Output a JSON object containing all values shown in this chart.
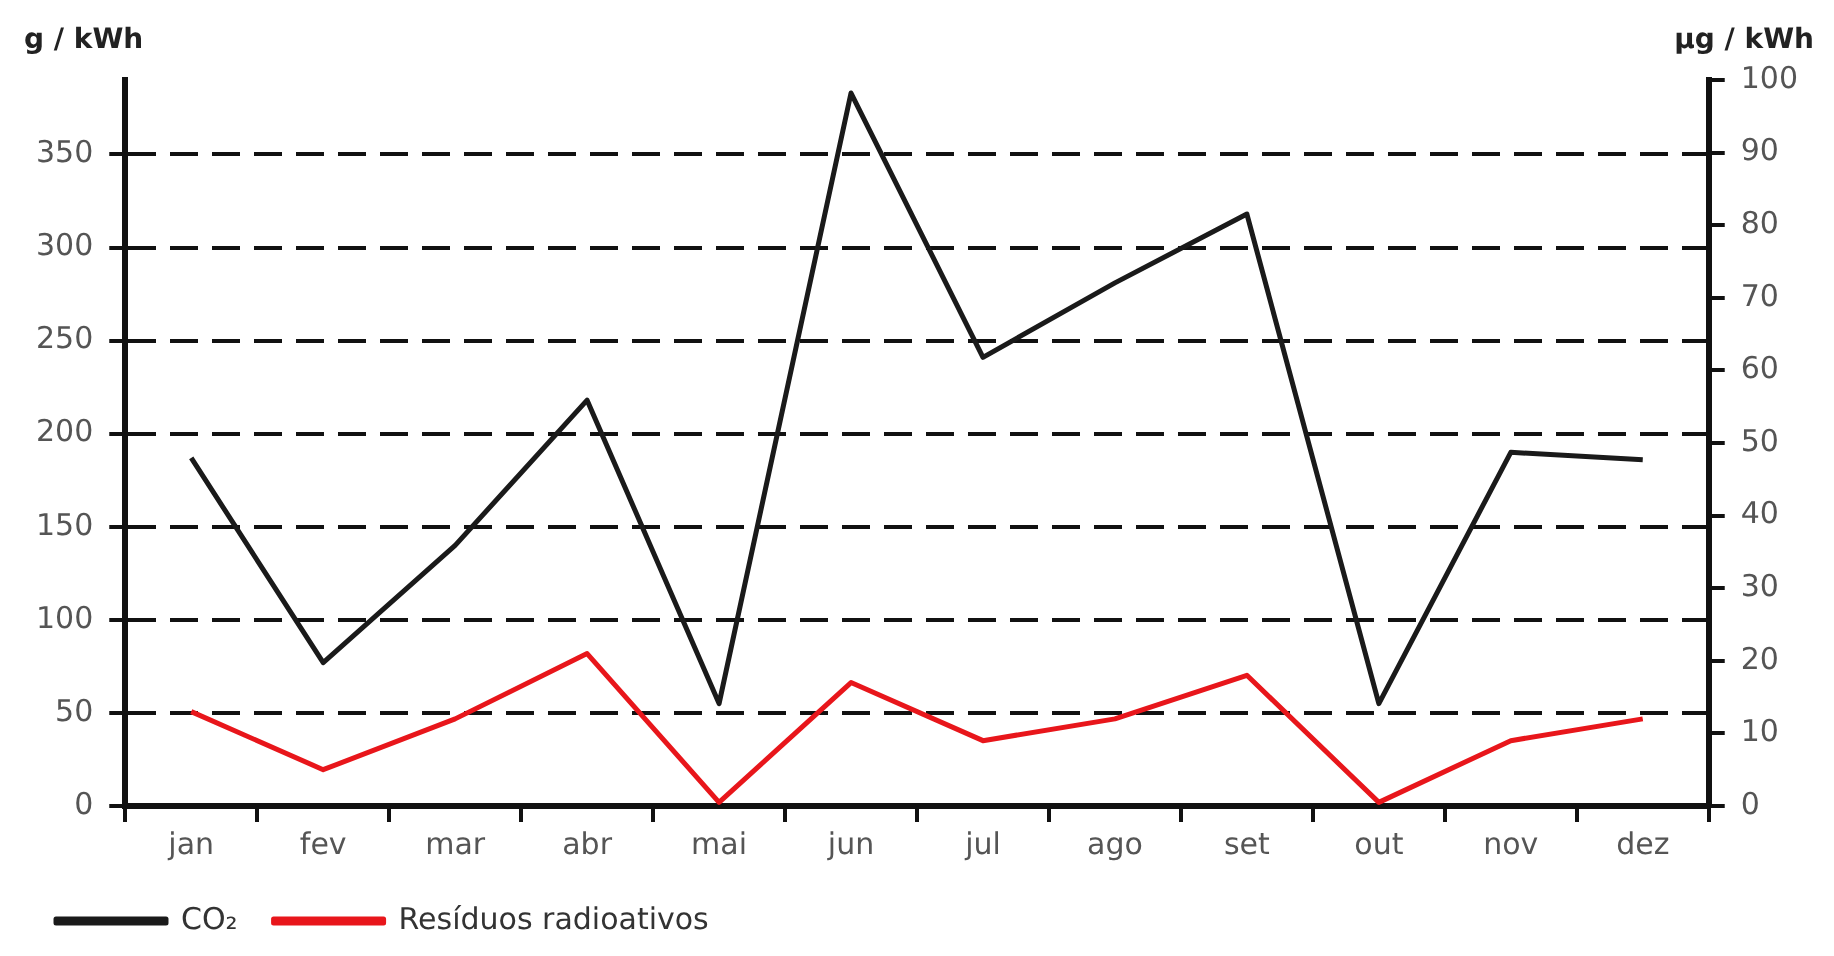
{
  "chart_data": {
    "type": "line",
    "ylabel": "g / kWh",
    "y2label": "µg / kWh",
    "categories": [
      "jan",
      "fev",
      "mar",
      "abr",
      "mai",
      "jun",
      "jul",
      "ago",
      "set",
      "out",
      "nov",
      "dez"
    ],
    "series": [
      {
        "name": "CO₂",
        "color": "#1a1a1a",
        "values": [
          187,
          77,
          140,
          218,
          55,
          383,
          241,
          281,
          318,
          55,
          190,
          186
        ]
      },
      {
        "name": "Resíduos radioativos",
        "color": "#e8161b",
        "axis": "y2",
        "values": [
          13,
          5,
          12,
          21,
          0.5,
          17,
          9,
          12,
          18,
          0.5,
          9,
          12
        ]
      }
    ],
    "ylim": [
      0,
      390
    ],
    "yticks": [
      0,
      50,
      100,
      150,
      200,
      250,
      300,
      350
    ],
    "y2lim": [
      0,
      100
    ],
    "y2ticks": [
      0,
      10,
      20,
      30,
      40,
      50,
      60,
      70,
      80,
      90,
      100
    ],
    "grid": "y",
    "legend": "bottom left",
    "marker": "none",
    "line_style": "solid"
  }
}
